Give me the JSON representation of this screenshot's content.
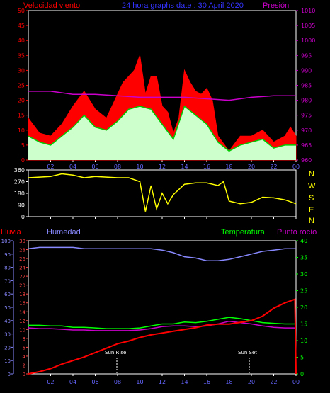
{
  "header": {
    "wind_label": "Velocidad viento",
    "title": "24 hora graphs date : 30 April 2020",
    "pressure_label": "Presión"
  },
  "lower_header": {
    "rain": "Lluvia",
    "humidity": "Humedad",
    "temperature": "Temperatura",
    "dewpoint": "Punto rocío"
  },
  "compass_labels": [
    "N",
    "W",
    "S",
    "E",
    "N"
  ],
  "annotations": {
    "sunrise": "Sun Rise",
    "sunset": "Sun Set"
  },
  "colors": {
    "wind_gust": "#ff0000",
    "wind_avg": "#00cc00",
    "wind_light": "#ccffcc",
    "pressure": "#cc00cc",
    "direction": "#ffff00",
    "rain": "#ff0000",
    "humidity": "#8888ff",
    "temperature": "#00ff00",
    "dewpoint": "#cc00cc",
    "left_axis": "#ff0000",
    "right_axis": "#cc00cc",
    "rain_axis": "#8888ff",
    "temp_axis": "#00ff00",
    "hum_axis": "#ff4444"
  },
  "chart_data": [
    {
      "type": "area",
      "title": "24 hora graphs date : 30 April 2020",
      "x_ticks": [
        "02",
        "04",
        "06",
        "08",
        "10",
        "12",
        "14",
        "16",
        "18",
        "20",
        "22",
        "00"
      ],
      "xlim": [
        0,
        24
      ],
      "ylabel": "Velocidad viento",
      "ylim": [
        0,
        50
      ],
      "y_ticks": [
        0,
        5,
        10,
        15,
        20,
        25,
        30,
        35,
        40,
        45,
        50
      ],
      "y2label": "Presión",
      "y2lim": [
        960,
        1010
      ],
      "y2_ticks": [
        960,
        965,
        970,
        975,
        980,
        985,
        990,
        995,
        1000,
        1005,
        1010
      ],
      "series": [
        {
          "name": "gust",
          "x": [
            0,
            1,
            2,
            3,
            4,
            5,
            6,
            7,
            8,
            8.5,
            9,
            9.5,
            10,
            10.5,
            11,
            11.5,
            12,
            12.5,
            13,
            13.5,
            14,
            14.5,
            15,
            15.5,
            16,
            16.5,
            17,
            18,
            19,
            20,
            21,
            22,
            23,
            23.5,
            24
          ],
          "y": [
            14,
            9,
            8,
            12,
            18,
            23,
            17,
            14,
            22,
            26,
            28,
            30,
            35,
            22,
            28,
            28,
            18,
            16,
            9,
            14,
            30,
            26,
            23,
            22,
            24,
            20,
            8,
            3,
            8,
            8,
            10,
            6,
            8,
            11,
            8
          ]
        },
        {
          "name": "average",
          "x": [
            0,
            1,
            2,
            3,
            4,
            5,
            6,
            7,
            8,
            9,
            10,
            11,
            12,
            13,
            14,
            15,
            16,
            17,
            18,
            19,
            20,
            21,
            22,
            23,
            24
          ],
          "y": [
            8,
            6,
            5,
            8,
            11,
            15,
            11,
            10,
            13,
            17,
            18,
            17,
            12,
            7,
            18,
            15,
            12,
            6,
            3,
            5,
            6,
            7,
            4,
            5,
            5
          ]
        },
        {
          "name": "pressure",
          "x": [
            0,
            2,
            4,
            6,
            8,
            10,
            12,
            14,
            16,
            18,
            20,
            22,
            24
          ],
          "y": [
            983,
            983,
            982,
            982,
            981.5,
            981,
            981,
            981,
            980.5,
            980,
            981,
            981.5,
            981.5
          ]
        }
      ]
    },
    {
      "type": "line",
      "title": "",
      "x_ticks": [
        "02",
        "04",
        "06",
        "08",
        "10",
        "12",
        "14",
        "16",
        "18",
        "20",
        "22",
        "00"
      ],
      "xlim": [
        0,
        24
      ],
      "ylabel": "",
      "ylim": [
        0,
        360
      ],
      "y_ticks": [
        0,
        90,
        180,
        270,
        360
      ],
      "series": [
        {
          "name": "direction",
          "x": [
            0,
            2,
            3,
            4,
            5,
            6,
            7,
            8,
            9,
            10,
            10.5,
            11,
            11.5,
            12,
            12.5,
            13,
            14,
            15,
            16,
            17,
            17.5,
            18,
            19,
            20,
            21,
            22,
            23,
            24
          ],
          "y": [
            300,
            310,
            330,
            320,
            300,
            310,
            305,
            300,
            300,
            270,
            40,
            240,
            60,
            180,
            100,
            170,
            250,
            260,
            260,
            240,
            270,
            120,
            100,
            110,
            150,
            145,
            130,
            100
          ]
        }
      ]
    },
    {
      "type": "line",
      "title": "",
      "x_ticks": [
        "02",
        "04",
        "06",
        "08",
        "10",
        "12",
        "14",
        "16",
        "18",
        "20",
        "22",
        "00"
      ],
      "xlim": [
        0,
        24
      ],
      "ylabel": "Lluvia",
      "ylim": [
        0,
        30
      ],
      "y_ticks": [
        0,
        2,
        4,
        6,
        8,
        10,
        12,
        14,
        16,
        18,
        20,
        22,
        24,
        26,
        28,
        30
      ],
      "y_outer_label": "Humedad",
      "y_outer_lim": [
        0,
        100
      ],
      "y_outer_ticks": [
        0,
        10,
        20,
        30,
        40,
        50,
        60,
        70,
        80,
        90,
        100
      ],
      "y2label": "Temperatura",
      "y2lim": [
        0,
        40
      ],
      "y2_ticks": [
        0,
        5,
        10,
        15,
        20,
        25,
        30,
        35,
        40
      ],
      "annotations": [
        {
          "text": "Sun Rise",
          "x": 7.5
        },
        {
          "text": "Sun Set",
          "x": 20
        }
      ],
      "series": [
        {
          "name": "rain",
          "axis": "rain",
          "x": [
            0,
            1,
            2,
            3,
            4,
            5,
            6,
            7,
            8,
            9,
            10,
            11,
            12,
            13,
            14,
            15,
            16,
            17,
            18,
            19,
            20,
            21,
            22,
            23,
            23.9,
            24
          ],
          "y": [
            0,
            0.5,
            1.2,
            2.2,
            3,
            3.8,
            4.8,
            5.8,
            6.8,
            7.4,
            8.2,
            8.8,
            9.2,
            9.6,
            10,
            10.4,
            11,
            11.2,
            11.2,
            11.6,
            12,
            13,
            14.8,
            16,
            16.8,
            0
          ]
        },
        {
          "name": "humidity",
          "axis": "humidity",
          "x": [
            0,
            1,
            2,
            3,
            4,
            5,
            6,
            7,
            8,
            9,
            10,
            11,
            12,
            13,
            14,
            15,
            16,
            17,
            18,
            19,
            20,
            21,
            22,
            23,
            24
          ],
          "y": [
            94,
            95,
            95,
            95,
            95,
            94,
            94,
            94,
            94,
            94,
            94,
            94,
            93,
            91,
            88,
            87,
            85,
            85,
            86,
            88,
            90,
            92,
            93,
            94,
            94
          ]
        },
        {
          "name": "temperature",
          "axis": "temperature",
          "x": [
            0,
            1,
            2,
            3,
            4,
            5,
            6,
            7,
            8,
            9,
            10,
            11,
            12,
            13,
            14,
            15,
            16,
            17,
            18,
            19,
            20,
            21,
            22,
            23,
            24
          ],
          "y": [
            14.6,
            14.6,
            14.4,
            14.4,
            14,
            14,
            13.8,
            13.6,
            13.6,
            13.6,
            13.8,
            14.4,
            15,
            15,
            15.6,
            15.4,
            15.8,
            16.4,
            17,
            16.6,
            16,
            15.4,
            15.2,
            15,
            15
          ]
        },
        {
          "name": "dewpoint",
          "axis": "temperature",
          "x": [
            0,
            1,
            2,
            3,
            4,
            5,
            6,
            7,
            8,
            9,
            10,
            11,
            12,
            13,
            14,
            15,
            16,
            17,
            18,
            19,
            20,
            21,
            22,
            23,
            24
          ],
          "y": [
            13.8,
            13.6,
            13.6,
            13.4,
            13.2,
            13.2,
            13,
            13,
            13,
            13,
            13.2,
            13.6,
            14.2,
            14.4,
            14.4,
            14.2,
            14.4,
            15,
            15.8,
            15.4,
            15,
            14.4,
            14,
            13.8,
            13.8
          ]
        }
      ]
    }
  ]
}
